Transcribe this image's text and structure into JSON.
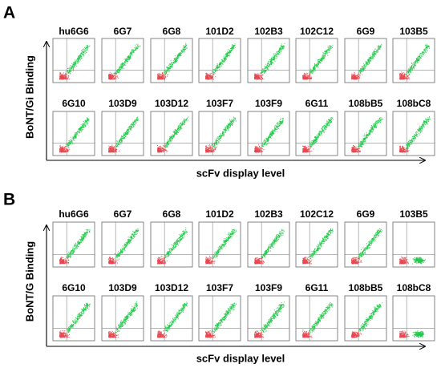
{
  "panels": [
    {
      "letter": "A",
      "y_label": "BoNT/Gi Binding",
      "x_label": "scFv display level",
      "rows": [
        [
          "hu6G6",
          "6G7",
          "6G8",
          "101D2",
          "102B3",
          "102C12",
          "6G9",
          "103B5"
        ],
        [
          "6G10",
          "103D9",
          "103D12",
          "103F7",
          "103F9",
          "6G11",
          "108bB5",
          "108bC8"
        ]
      ]
    },
    {
      "letter": "B",
      "y_label": "BoNT/G Binding",
      "x_label": "scFv display level",
      "rows": [
        [
          "hu6G6",
          "6G7",
          "6G8",
          "101D2",
          "102B3",
          "102C12",
          "6G9",
          "103B5"
        ],
        [
          "6G10",
          "103D9",
          "103D12",
          "103F7",
          "103F9",
          "6G11",
          "108bB5",
          "108bC8"
        ]
      ]
    }
  ]
}
